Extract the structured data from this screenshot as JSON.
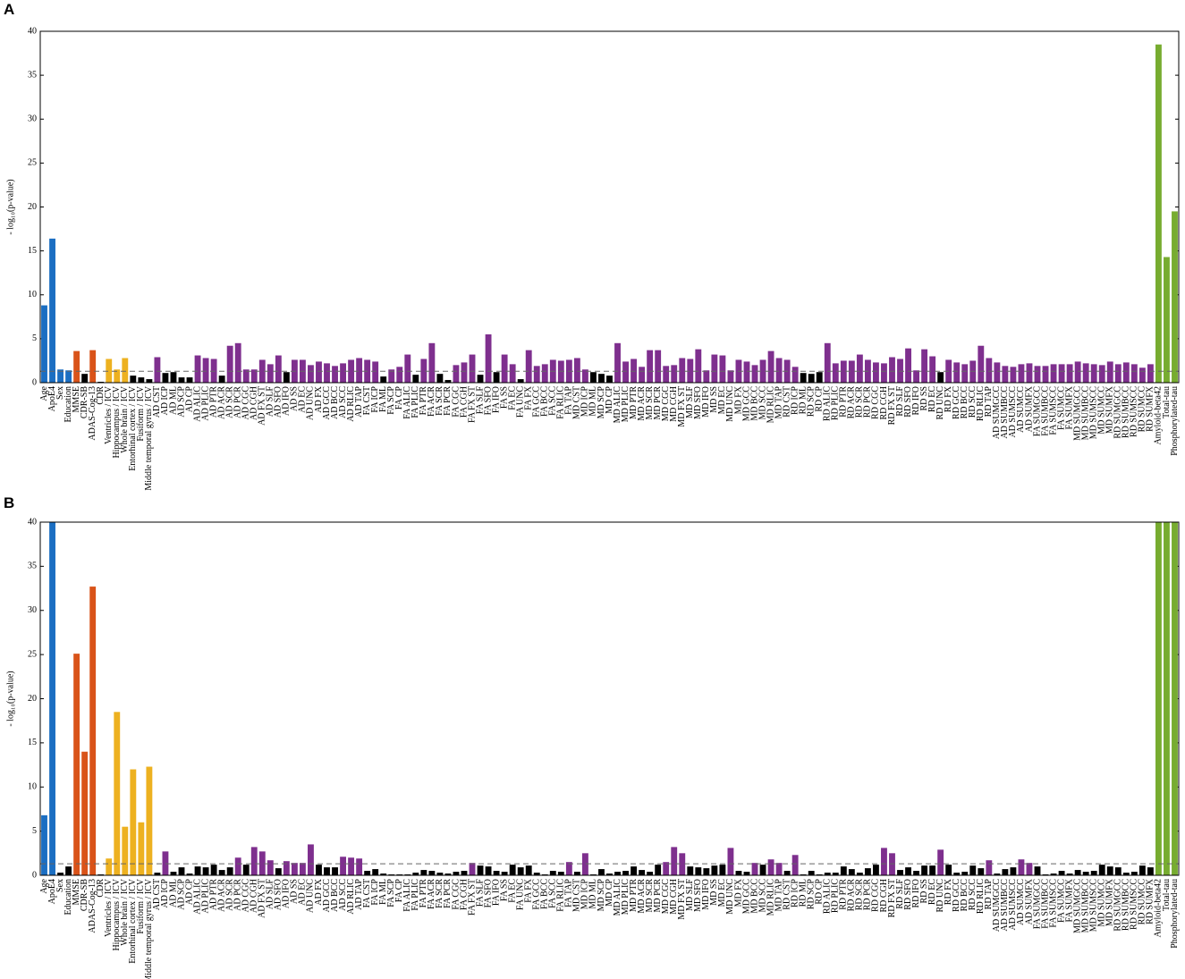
{
  "chart_data": [
    {
      "type": "bar",
      "panel": "A",
      "y_label": "- log₁₀(p-value)",
      "categories": [
        "Age",
        "ApoE4",
        "Sex",
        "Education",
        "MMSE",
        "CDR-SB",
        "ADAS-Cog-13",
        "CDR",
        "Ventricles / ICV",
        "Hippocampus / ICV",
        "Whole brain / ICV",
        "Entorhinal cortex / ICV",
        "Fusiform / ICV",
        "Middle temporal gyrus / ICV",
        "AD CST",
        "AD ICP",
        "AD ML",
        "AD SCP",
        "AD CP",
        "AD ALIC",
        "AD PLIC",
        "AD PTR",
        "AD ACR",
        "AD SCR",
        "AD PCR",
        "AD CGC",
        "AD CGH",
        "AD FX ST",
        "AD SLF",
        "AD SFO",
        "AD IFO",
        "AD SS",
        "AD EC",
        "AD UNC",
        "AD FX",
        "AD GCC",
        "AD BCC",
        "AD SCC",
        "AD RLIC",
        "AD TAP",
        "FA CST",
        "FA ICP",
        "FA ML",
        "FA SCP",
        "FA CP",
        "FA ALIC",
        "FA PLIC",
        "FA PTR",
        "FA ACR",
        "FA SCR",
        "FA PCR",
        "FA CGC",
        "FA CGH",
        "FA FX ST",
        "FA SLF",
        "FA SFO",
        "FA IFO",
        "FA SS",
        "FA EC",
        "FA UNC",
        "FA FX",
        "FA GCC",
        "FA BCC",
        "FA SCC",
        "FA RLIC",
        "FA TAP",
        "MD CST",
        "MD ICP",
        "MD ML",
        "MD SCP",
        "MD CP",
        "MD ALIC",
        "MD PLIC",
        "MD PTR",
        "MD ACR",
        "MD SCR",
        "MD PCR",
        "MD CGC",
        "MD CGH",
        "MD FX ST",
        "MD SLF",
        "MD SFO",
        "MD IFO",
        "MD SS",
        "MD EC",
        "MD UNC",
        "MD FX",
        "MD GCC",
        "MD BCC",
        "MD SCC",
        "MD RLIC",
        "MD TAP",
        "RD CST",
        "RD ICP",
        "RD ML",
        "RD SCP",
        "RD CP",
        "RD ALIC",
        "RD PLIC",
        "RD PTR",
        "RD ACR",
        "RD SCR",
        "RD PCR",
        "RD CGC",
        "RD CGH",
        "RD FX ST",
        "RD SLF",
        "RD SFO",
        "RD IFO",
        "RD SS",
        "RD EC",
        "RD UNC",
        "RD FX",
        "RD GCC",
        "RD BCC",
        "RD SCC",
        "RD RLIC",
        "RD TAP",
        "AD SUMGCC",
        "AD SUMBCC",
        "AD SUMSCC",
        "AD SUMCC",
        "AD SUMFX",
        "FA SUMGCC",
        "FA SUMBCC",
        "FA SUMSCC",
        "FA SUMCC",
        "FA SUMFX",
        "MD SUMGCC",
        "MD SUMBCC",
        "MD SUMSCC",
        "MD SUMCC",
        "MD SUMFX",
        "RD SUMGCC",
        "RD SUMBCC",
        "RD SUMSCC",
        "RD SUMCC",
        "RD SUMFX",
        "Amyloid-beta42",
        "Total-tau",
        "Phosphorylated-tau"
      ],
      "values": [
        8.8,
        16.4,
        1.5,
        1.4,
        3.6,
        1.0,
        3.7,
        0.1,
        2.7,
        1.5,
        2.8,
        0.8,
        0.6,
        0.4,
        2.9,
        1.1,
        1.2,
        0.6,
        0.6,
        3.1,
        2.8,
        2.7,
        0.8,
        4.2,
        4.5,
        1.5,
        1.5,
        2.6,
        2.1,
        3.1,
        1.2,
        2.6,
        2.6,
        2.0,
        2.4,
        2.2,
        1.9,
        2.2,
        2.6,
        2.8,
        2.6,
        2.4,
        0.7,
        1.5,
        1.8,
        3.2,
        0.9,
        2.7,
        4.5,
        1.0,
        0.3,
        2.0,
        2.3,
        3.2,
        0.9,
        5.5,
        1.2,
        3.2,
        2.1,
        0.4,
        3.7,
        1.9,
        2.1,
        2.6,
        2.5,
        2.6,
        2.8,
        1.5,
        1.2,
        1.0,
        0.8,
        4.5,
        2.4,
        2.7,
        1.8,
        3.7,
        3.7,
        1.9,
        2.0,
        2.8,
        2.7,
        3.8,
        1.4,
        3.2,
        3.1,
        1.4,
        2.6,
        2.4,
        2.0,
        2.6,
        3.6,
        2.8,
        2.6,
        1.8,
        1.1,
        1.0,
        1.2,
        4.5,
        2.2,
        2.5,
        2.5,
        3.2,
        2.6,
        2.3,
        2.2,
        2.9,
        2.7,
        3.9,
        1.4,
        3.8,
        3.0,
        1.2,
        2.6,
        2.3,
        2.1,
        2.5,
        4.2,
        2.8,
        2.3,
        1.9,
        1.8,
        2.1,
        2.2,
        1.9,
        1.9,
        2.1,
        2.1,
        2.1,
        2.4,
        2.2,
        2.1,
        2.0,
        2.4,
        2.1,
        2.3,
        2.1,
        1.7,
        2.1,
        38.5,
        14.3,
        19.5
      ],
      "colors": [
        "#1b6ec2",
        "#1b6ec2",
        "#1b6ec2",
        "#1b6ec2",
        "#d95319",
        "#d95319",
        "#d95319",
        "#d95319",
        "#edb120",
        "#edb120",
        "#edb120",
        "#edb120",
        "#edb120",
        "#edb120",
        "#7e2f8e",
        "#7e2f8e",
        "#7e2f8e",
        "#7e2f8e",
        "#7e2f8e",
        "#7e2f8e",
        "#7e2f8e",
        "#7e2f8e",
        "#7e2f8e",
        "#7e2f8e",
        "#7e2f8e",
        "#7e2f8e",
        "#7e2f8e",
        "#7e2f8e",
        "#7e2f8e",
        "#7e2f8e",
        "#7e2f8e",
        "#7e2f8e",
        "#7e2f8e",
        "#7e2f8e",
        "#7e2f8e",
        "#7e2f8e",
        "#7e2f8e",
        "#7e2f8e",
        "#7e2f8e",
        "#7e2f8e",
        "#7e2f8e",
        "#7e2f8e",
        "#7e2f8e",
        "#7e2f8e",
        "#7e2f8e",
        "#7e2f8e",
        "#7e2f8e",
        "#7e2f8e",
        "#7e2f8e",
        "#7e2f8e",
        "#7e2f8e",
        "#7e2f8e",
        "#7e2f8e",
        "#7e2f8e",
        "#7e2f8e",
        "#7e2f8e",
        "#7e2f8e",
        "#7e2f8e",
        "#7e2f8e",
        "#7e2f8e",
        "#7e2f8e",
        "#7e2f8e",
        "#7e2f8e",
        "#7e2f8e",
        "#7e2f8e",
        "#7e2f8e",
        "#7e2f8e",
        "#7e2f8e",
        "#7e2f8e",
        "#7e2f8e",
        "#7e2f8e",
        "#7e2f8e",
        "#7e2f8e",
        "#7e2f8e",
        "#7e2f8e",
        "#7e2f8e",
        "#7e2f8e",
        "#7e2f8e",
        "#7e2f8e",
        "#7e2f8e",
        "#7e2f8e",
        "#7e2f8e",
        "#7e2f8e",
        "#7e2f8e",
        "#7e2f8e",
        "#7e2f8e",
        "#7e2f8e",
        "#7e2f8e",
        "#7e2f8e",
        "#7e2f8e",
        "#7e2f8e",
        "#7e2f8e",
        "#7e2f8e",
        "#7e2f8e",
        "#7e2f8e",
        "#7e2f8e",
        "#7e2f8e",
        "#7e2f8e",
        "#7e2f8e",
        "#7e2f8e",
        "#7e2f8e",
        "#7e2f8e",
        "#7e2f8e",
        "#7e2f8e",
        "#7e2f8e",
        "#7e2f8e",
        "#7e2f8e",
        "#7e2f8e",
        "#7e2f8e",
        "#7e2f8e",
        "#7e2f8e",
        "#7e2f8e",
        "#7e2f8e",
        "#7e2f8e",
        "#7e2f8e",
        "#7e2f8e",
        "#7e2f8e",
        "#7e2f8e",
        "#7e2f8e",
        "#7e2f8e",
        "#7e2f8e",
        "#7e2f8e",
        "#7e2f8e",
        "#7e2f8e",
        "#7e2f8e",
        "#7e2f8e",
        "#7e2f8e",
        "#7e2f8e",
        "#7e2f8e",
        "#7e2f8e",
        "#7e2f8e",
        "#7e2f8e",
        "#7e2f8e",
        "#7e2f8e",
        "#7e2f8e",
        "#7e2f8e",
        "#7e2f8e",
        "#7e2f8e",
        "#77ac30",
        "#77ac30",
        "#77ac30"
      ],
      "threshold": 1.3,
      "below_threshold_color": "#000000",
      "ylim": [
        0,
        40
      ],
      "yticks": [
        0,
        5,
        10,
        15,
        20,
        25,
        30,
        35,
        40
      ]
    },
    {
      "type": "bar",
      "panel": "B",
      "y_label": "- log₁₀(p-value)",
      "categories": [
        "Age",
        "ApoE4",
        "Sex",
        "Education",
        "MMSE",
        "CDR-SB",
        "ADAS-Cog-13",
        "CDR",
        "Ventricles / ICV",
        "Hippocampus / ICV",
        "Whole brain / ICV",
        "Entorhinal cortex / ICV",
        "Fusiform / ICV",
        "Middle temporal gyrus / ICV",
        "AD CST",
        "AD ICP",
        "AD ML",
        "AD SCP",
        "AD CP",
        "AD ALIC",
        "AD PLIC",
        "AD PTR",
        "AD ACR",
        "AD SCR",
        "AD PCR",
        "AD CGC",
        "AD CGH",
        "AD FX ST",
        "AD SLF",
        "AD SFO",
        "AD IFO",
        "AD SS",
        "AD EC",
        "AD UNC",
        "AD FX",
        "AD GCC",
        "AD BCC",
        "AD SCC",
        "AD RLIC",
        "AD TAP",
        "FA CST",
        "FA ICP",
        "FA ML",
        "FA SCP",
        "FA CP",
        "FA ALIC",
        "FA PLIC",
        "FA PTR",
        "FA ACR",
        "FA SCR",
        "FA PCR",
        "FA CGC",
        "FA CGH",
        "FA FX ST",
        "FA SLF",
        "FA SFO",
        "FA IFO",
        "FA SS",
        "FA EC",
        "FA UNC",
        "FA FX",
        "FA GCC",
        "FA BCC",
        "FA SCC",
        "FA RLIC",
        "FA TAP",
        "MD CST",
        "MD ICP",
        "MD ML",
        "MD SCP",
        "MD CP",
        "MD ALIC",
        "MD PLIC",
        "MD PTR",
        "MD ACR",
        "MD SCR",
        "MD PCR",
        "MD CGC",
        "MD CGH",
        "MD FX ST",
        "MD SLF",
        "MD SFO",
        "MD IFO",
        "MD SS",
        "MD EC",
        "MD UNC",
        "MD FX",
        "MD GCC",
        "MD BCC",
        "MD SCC",
        "MD RLIC",
        "MD TAP",
        "RD CST",
        "RD ICP",
        "RD ML",
        "RD SCP",
        "RD CP",
        "RD ALIC",
        "RD PLIC",
        "RD PTR",
        "RD ACR",
        "RD SCR",
        "RD PCR",
        "RD CGC",
        "RD CGH",
        "RD FX ST",
        "RD SLF",
        "RD SFO",
        "RD IFO",
        "RD SS",
        "RD EC",
        "RD UNC",
        "RD FX",
        "RD GCC",
        "RD BCC",
        "RD SCC",
        "RD RLIC",
        "RD TAP",
        "AD SUMGCC",
        "AD SUMBCC",
        "AD SUMSCC",
        "AD SUMCC",
        "AD SUMFX",
        "FA SUMGCC",
        "FA SUMBCC",
        "FA SUMSCC",
        "FA SUMCC",
        "FA SUMFX",
        "MD SUMGCC",
        "MD SUMBCC",
        "MD SUMSCC",
        "MD SUMCC",
        "MD SUMFX",
        "RD SUMGCC",
        "RD SUMBCC",
        "RD SUMSCC",
        "RD SUMCC",
        "RD SUMFX",
        "Amyloid-beta42",
        "Total-tau",
        "Phosphorylated-tau"
      ],
      "values": [
        6.8,
        40,
        0.3,
        1.0,
        25.1,
        14.0,
        32.7,
        0.1,
        1.9,
        18.5,
        5.5,
        12.0,
        6.0,
        12.3,
        0.3,
        2.7,
        0.4,
        0.9,
        0.2,
        1.0,
        0.9,
        1.2,
        0.6,
        0.9,
        2.0,
        1.2,
        3.2,
        2.7,
        1.7,
        0.8,
        1.6,
        1.4,
        1.4,
        3.5,
        1.2,
        0.9,
        0.9,
        2.1,
        2.0,
        1.9,
        0.5,
        0.7,
        0.2,
        0.1,
        0.1,
        0.1,
        0.3,
        0.6,
        0.5,
        0.3,
        0.2,
        0.4,
        0.5,
        1.4,
        1.1,
        1.0,
        0.5,
        0.4,
        1.2,
        0.9,
        1.1,
        0.3,
        0.1,
        0.5,
        0.4,
        1.5,
        0.4,
        2.5,
        0.1,
        0.7,
        0.2,
        0.4,
        0.5,
        1.0,
        0.6,
        0.4,
        1.2,
        1.5,
        3.2,
        2.5,
        1.0,
        0.9,
        0.8,
        1.1,
        1.2,
        3.1,
        0.5,
        0.4,
        1.4,
        1.2,
        1.8,
        1.4,
        0.5,
        2.3,
        0.1,
        0.5,
        0.1,
        0.3,
        0.3,
        1.0,
        0.7,
        0.3,
        0.8,
        1.2,
        3.1,
        2.5,
        0.6,
        0.9,
        0.5,
        1.1,
        1.1,
        2.9,
        1.2,
        0.3,
        0.4,
        1.1,
        0.8,
        1.7,
        0.2,
        0.7,
        0.9,
        1.8,
        1.4,
        1.0,
        0.1,
        0.2,
        0.5,
        0.2,
        0.6,
        0.4,
        0.5,
        1.2,
        1.0,
        0.9,
        0.3,
        0.4,
        1.1,
        0.9,
        40,
        40,
        40
      ],
      "colors": [
        "#1b6ec2",
        "#1b6ec2",
        "#1b6ec2",
        "#1b6ec2",
        "#d95319",
        "#d95319",
        "#d95319",
        "#d95319",
        "#edb120",
        "#edb120",
        "#edb120",
        "#edb120",
        "#edb120",
        "#edb120",
        "#7e2f8e",
        "#7e2f8e",
        "#7e2f8e",
        "#7e2f8e",
        "#7e2f8e",
        "#7e2f8e",
        "#7e2f8e",
        "#7e2f8e",
        "#7e2f8e",
        "#7e2f8e",
        "#7e2f8e",
        "#7e2f8e",
        "#7e2f8e",
        "#7e2f8e",
        "#7e2f8e",
        "#7e2f8e",
        "#7e2f8e",
        "#7e2f8e",
        "#7e2f8e",
        "#7e2f8e",
        "#7e2f8e",
        "#7e2f8e",
        "#7e2f8e",
        "#7e2f8e",
        "#7e2f8e",
        "#7e2f8e",
        "#7e2f8e",
        "#7e2f8e",
        "#7e2f8e",
        "#7e2f8e",
        "#7e2f8e",
        "#7e2f8e",
        "#7e2f8e",
        "#7e2f8e",
        "#7e2f8e",
        "#7e2f8e",
        "#7e2f8e",
        "#7e2f8e",
        "#7e2f8e",
        "#7e2f8e",
        "#7e2f8e",
        "#7e2f8e",
        "#7e2f8e",
        "#7e2f8e",
        "#7e2f8e",
        "#7e2f8e",
        "#7e2f8e",
        "#7e2f8e",
        "#7e2f8e",
        "#7e2f8e",
        "#7e2f8e",
        "#7e2f8e",
        "#7e2f8e",
        "#7e2f8e",
        "#7e2f8e",
        "#7e2f8e",
        "#7e2f8e",
        "#7e2f8e",
        "#7e2f8e",
        "#7e2f8e",
        "#7e2f8e",
        "#7e2f8e",
        "#7e2f8e",
        "#7e2f8e",
        "#7e2f8e",
        "#7e2f8e",
        "#7e2f8e",
        "#7e2f8e",
        "#7e2f8e",
        "#7e2f8e",
        "#7e2f8e",
        "#7e2f8e",
        "#7e2f8e",
        "#7e2f8e",
        "#7e2f8e",
        "#7e2f8e",
        "#7e2f8e",
        "#7e2f8e",
        "#7e2f8e",
        "#7e2f8e",
        "#7e2f8e",
        "#7e2f8e",
        "#7e2f8e",
        "#7e2f8e",
        "#7e2f8e",
        "#7e2f8e",
        "#7e2f8e",
        "#7e2f8e",
        "#7e2f8e",
        "#7e2f8e",
        "#7e2f8e",
        "#7e2f8e",
        "#7e2f8e",
        "#7e2f8e",
        "#7e2f8e",
        "#7e2f8e",
        "#7e2f8e",
        "#7e2f8e",
        "#7e2f8e",
        "#7e2f8e",
        "#7e2f8e",
        "#7e2f8e",
        "#7e2f8e",
        "#7e2f8e",
        "#7e2f8e",
        "#7e2f8e",
        "#7e2f8e",
        "#7e2f8e",
        "#7e2f8e",
        "#7e2f8e",
        "#7e2f8e",
        "#7e2f8e",
        "#7e2f8e",
        "#7e2f8e",
        "#7e2f8e",
        "#7e2f8e",
        "#7e2f8e",
        "#7e2f8e",
        "#7e2f8e",
        "#7e2f8e",
        "#7e2f8e",
        "#7e2f8e",
        "#7e2f8e",
        "#7e2f8e",
        "#77ac30",
        "#77ac30",
        "#77ac30"
      ],
      "threshold": 1.3,
      "below_threshold_color": "#000000",
      "ylim": [
        0,
        40
      ],
      "yticks": [
        0,
        5,
        10,
        15,
        20,
        25,
        30,
        35,
        40
      ]
    }
  ]
}
